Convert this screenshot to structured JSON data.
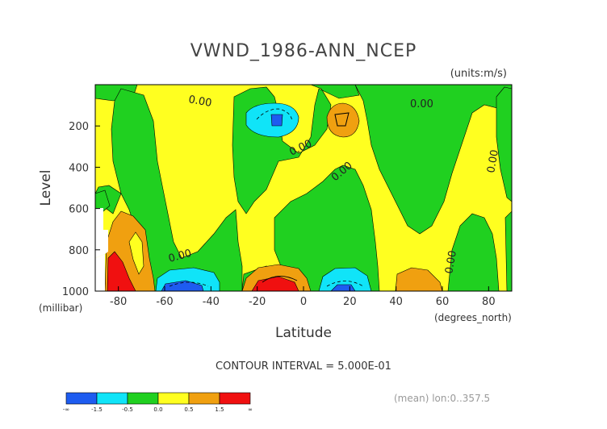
{
  "chart_data": {
    "type": "heatmap",
    "title": "VWND_1986-ANN_NCEP",
    "units": "(units:m/s)",
    "xlabel": "Latitude",
    "x_units": "(degrees_north)",
    "ylabel": "Level",
    "y_units": "(millibar)",
    "x_range": [
      -90,
      90
    ],
    "y_range": [
      0,
      1000
    ],
    "y_reversed": true,
    "x_ticks": [
      "-80",
      "-60",
      "-40",
      "-20",
      "0",
      "20",
      "40",
      "60",
      "80"
    ],
    "y_ticks": [
      "200",
      "400",
      "600",
      "800",
      "1000"
    ],
    "contour_interval": "CONTOUR INTERVAL = 5.000E-01",
    "footer_note": "(mean) lon:0..357.5",
    "contour_label": "0.00",
    "colorbar": {
      "labels": [
        "-∞",
        "-1.5",
        "-0.5",
        "0.0",
        "0.5",
        "1.5",
        "∞"
      ],
      "colors": [
        "#1e5cf0",
        "#10e4f8",
        "#20d020",
        "#ffff20",
        "#f0a010",
        "#f01010"
      ]
    },
    "regions": [
      {
        "value_range": "0 to 0.5",
        "color": "#ffff20",
        "desc": "background positive"
      },
      {
        "value_range": "-0.5 to 0",
        "color": "#20d020"
      },
      {
        "value_range": "-1.5 to -0.5",
        "color": "#10e4f8"
      },
      {
        "value_range": "< -1.5",
        "color": "#1e5cf0"
      },
      {
        "value_range": "0.5 to 1.5",
        "color": "#f0a010"
      },
      {
        "value_range": "> 1.5",
        "color": "#f01010"
      }
    ]
  }
}
